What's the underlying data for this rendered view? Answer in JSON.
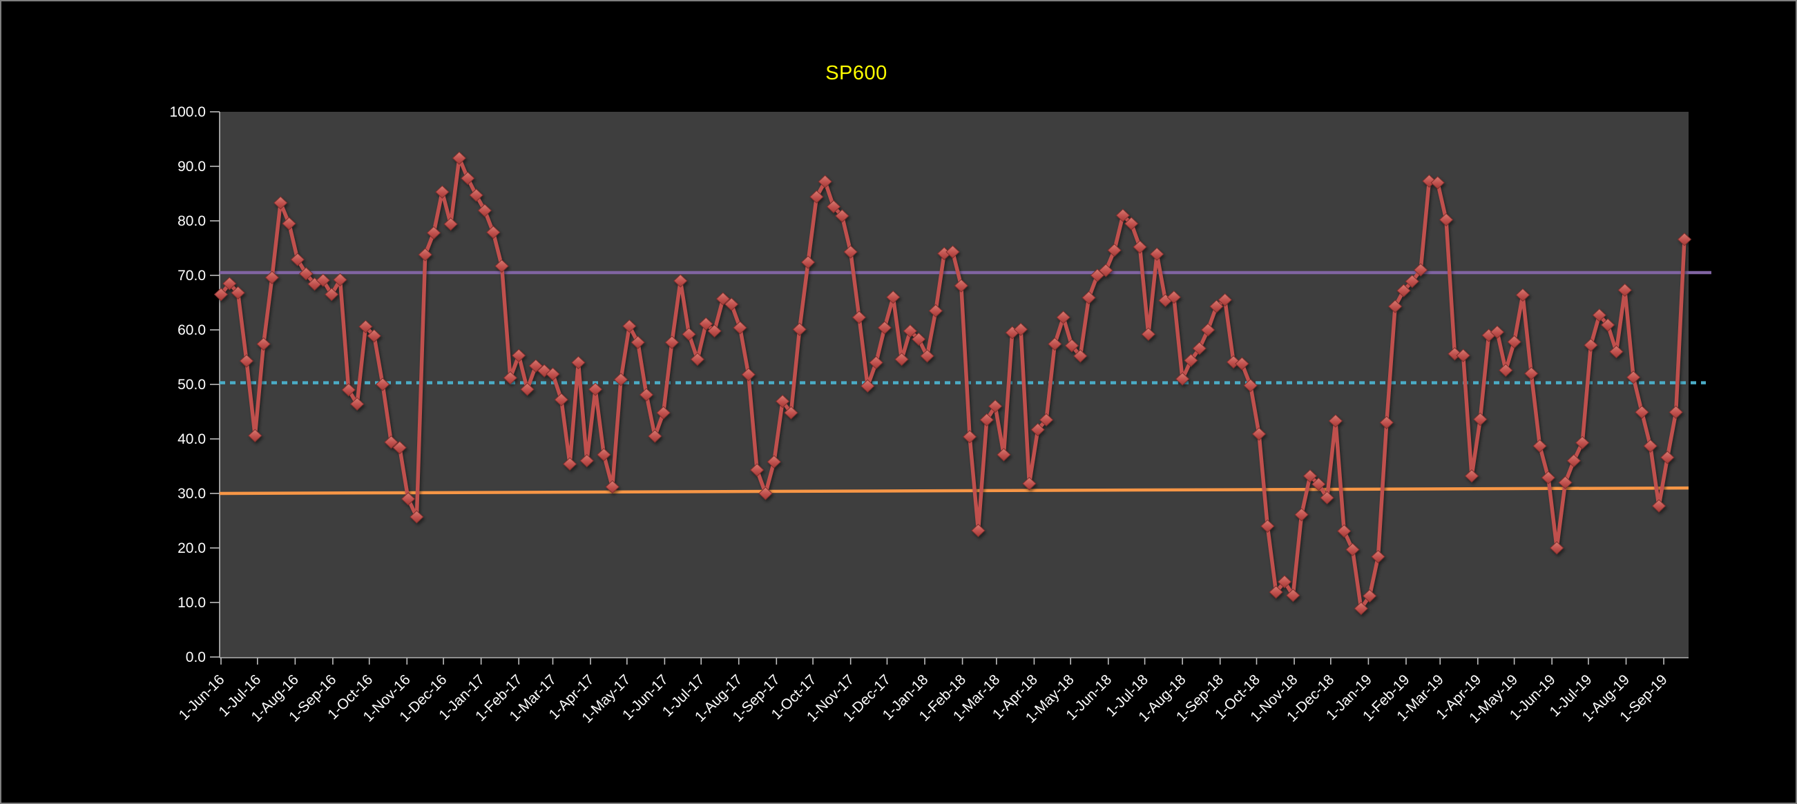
{
  "window": {
    "background": "#000000",
    "frame_border_color": "#7f7f7f"
  },
  "chart_data": {
    "type": "line",
    "title": "SP600",
    "title_color": "#ffff00",
    "plot_bg": "#3e3e3e",
    "axis_color": "#bfbfbf",
    "label_color": "#ffffff",
    "grid": false,
    "legend_position": "none",
    "ylim": [
      0,
      100
    ],
    "y_tick_labels": [
      "100.0",
      "90.0",
      "80.0",
      "70.0",
      "60.0",
      "50.0",
      "40.0",
      "30.0",
      "20.0",
      "10.0",
      "0.0"
    ],
    "x_tick_labels": [
      "1-Jun-16",
      "1-Jul-16",
      "1-Aug-16",
      "1-Sep-16",
      "1-Oct-16",
      "1-Nov-16",
      "1-Dec-16",
      "1-Jan-17",
      "1-Feb-17",
      "1-Mar-17",
      "1-Apr-17",
      "1-May-17",
      "1-Jun-17",
      "1-Jul-17",
      "1-Aug-17",
      "1-Sep-17",
      "1-Oct-17",
      "1-Nov-17",
      "1-Dec-17",
      "1-Jan-18",
      "1-Feb-18",
      "1-Mar-18",
      "1-Apr-18",
      "1-May-18",
      "1-Jun-18",
      "1-Jul-18",
      "1-Aug-18",
      "1-Sep-18",
      "1-Oct-18",
      "1-Nov-18",
      "1-Dec-18",
      "1-Jan-19",
      "1-Feb-19",
      "1-Mar-19",
      "1-Apr-19",
      "1-May-19",
      "1-Jun-19",
      "1-Jul-19",
      "1-Aug-19",
      "1-Sep-19"
    ],
    "series": [
      {
        "name": "SP600",
        "kind": "line-markers",
        "color": "#c0504d",
        "marker": "diamond",
        "marker_fill_top": "#d97c72",
        "marker_fill_bottom": "#a03a35",
        "marker_stroke": "#7e2f2d",
        "x_start_date": "2016-06-01",
        "x_step_days": 7,
        "values": [
          66.5,
          68.5,
          66.8,
          54.3,
          40.6,
          57.4,
          69.6,
          83.3,
          79.5,
          72.9,
          70.3,
          68.4,
          69.1,
          66.5,
          69.2,
          49.0,
          46.4,
          60.6,
          58.9,
          50.0,
          39.4,
          38.4,
          29.0,
          25.7,
          73.8,
          77.8,
          85.3,
          79.4,
          91.5,
          87.8,
          84.7,
          81.9,
          77.9,
          71.7,
          51.2,
          55.3,
          49.1,
          53.4,
          52.5,
          51.9,
          47.2,
          35.4,
          54.0,
          36.0,
          49.1,
          37.1,
          31.2,
          50.9,
          60.7,
          57.7,
          48.1,
          40.5,
          44.8,
          57.7,
          69.0,
          59.2,
          54.6,
          61.1,
          59.8,
          65.7,
          64.7,
          60.4,
          51.8,
          34.3,
          30.0,
          35.8,
          46.9,
          44.8,
          60.1,
          72.4,
          84.4,
          87.2,
          82.6,
          80.9,
          74.3,
          62.3,
          49.7,
          54.0,
          60.4,
          66.0,
          54.6,
          59.8,
          58.3,
          55.2,
          63.5,
          74.0,
          74.3,
          68.1,
          40.4,
          23.2,
          43.5,
          46.0,
          37.1,
          59.5,
          60.1,
          31.8,
          41.7,
          43.5,
          57.4,
          62.3,
          57.1,
          55.2,
          65.9,
          70.0,
          70.9,
          74.6,
          81.0,
          79.5,
          75.2,
          59.2,
          73.9,
          65.4,
          66.0,
          51.0,
          54.4,
          56.6,
          60.0,
          64.3,
          65.5,
          54.1,
          53.8,
          49.8,
          40.9,
          24.0,
          11.9,
          13.8,
          11.3,
          26.1,
          33.2,
          31.7,
          29.2,
          43.3,
          23.1,
          19.7,
          8.9,
          11.2,
          18.4,
          43.0,
          64.3,
          67.2,
          68.9,
          71.0,
          87.3,
          87.0,
          80.2,
          55.6,
          55.3,
          33.2,
          43.6,
          59.0,
          59.6,
          52.6,
          57.8,
          66.4,
          52.0,
          38.7,
          32.9,
          20.0,
          32.0,
          36.0,
          39.3,
          57.2,
          62.7,
          60.9,
          56.0,
          67.3,
          51.3,
          44.9,
          38.7,
          27.7,
          36.6,
          44.9,
          76.6
        ]
      },
      {
        "name": "upper-reference",
        "kind": "hline",
        "color": "#8064a2",
        "style": "solid",
        "value": 70.5
      },
      {
        "name": "mid-reference",
        "kind": "hline",
        "color": "#4bacc6",
        "style": "dotted",
        "value": 50.3
      },
      {
        "name": "lower-reference",
        "kind": "hline",
        "color": "#f79646",
        "style": "solid",
        "value_start": 30.0,
        "value_end": 31.0
      }
    ]
  }
}
